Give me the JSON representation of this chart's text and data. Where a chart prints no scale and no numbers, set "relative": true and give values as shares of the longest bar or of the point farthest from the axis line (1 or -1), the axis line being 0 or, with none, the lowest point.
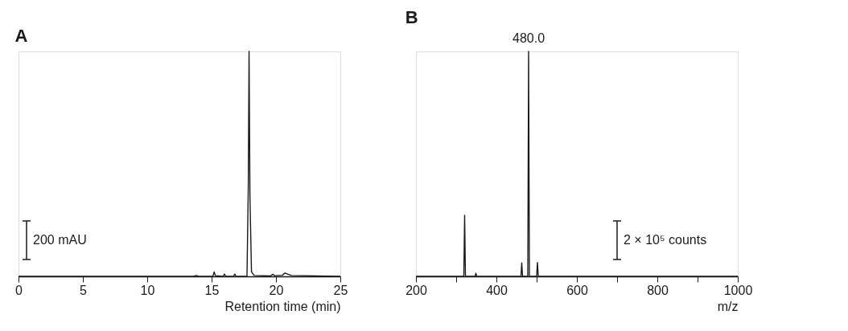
{
  "chart_data": [
    {
      "type": "line",
      "title": "A",
      "xlabel": "Retention time (min)",
      "relative": true,
      "xlim": [
        0,
        25
      ],
      "xticks": [
        0,
        5,
        10,
        15,
        20,
        25
      ],
      "tick_labels": "x",
      "grid": false,
      "marker": "none",
      "line_style": "solid",
      "annotations": [
        "200 mAU"
      ],
      "series": [
        {
          "color": "#1a1a1a",
          "x": [
            0,
            5,
            10,
            13.6,
            13.8,
            14.0,
            15.1,
            15.2,
            15.3,
            15.9,
            16.0,
            16.1,
            16.7,
            16.8,
            16.9,
            17.75,
            17.85,
            17.91,
            17.98,
            18.1,
            18.3,
            19.6,
            19.75,
            19.9,
            20.5,
            20.7,
            20.9,
            21.2,
            25
          ],
          "values": [
            0,
            0,
            0,
            0,
            0.004,
            0,
            0,
            0.02,
            0.003,
            0,
            0.01,
            0,
            0,
            0.01,
            0,
            0,
            0.4,
            1,
            0.35,
            0.02,
            0.004,
            0.002,
            0.01,
            0.003,
            0.005,
            0.015,
            0.01,
            0.004,
            0
          ]
        }
      ]
    },
    {
      "type": "line",
      "title": "B",
      "xlabel": "m/z",
      "relative": true,
      "xlim": [
        200,
        1000
      ],
      "xticks": [
        200,
        {
          "value": 300,
          "label": null
        },
        400,
        {
          "value": 500,
          "label": null
        },
        600,
        {
          "value": 700,
          "label": null
        },
        800,
        {
          "value": 900,
          "label": null
        },
        1000
      ],
      "tick_labels": "x",
      "grid": false,
      "marker": "none",
      "line_style": "solid",
      "annotations": [
        {
          "text": "480.0",
          "x": 480,
          "y": 1
        },
        "2 × 10⁵ counts"
      ],
      "series": [
        {
          "color": "#1a1a1a",
          "x": [
            200,
            319,
            321,
            323,
            347,
            349,
            351,
            461,
            463,
            465,
            478,
            480,
            482,
            500,
            502,
            504,
            1000
          ],
          "values": [
            0,
            0,
            0.272,
            0,
            0,
            0.014,
            0,
            0,
            0.06,
            0,
            0,
            1,
            0,
            0,
            0.062,
            0,
            0
          ]
        }
      ]
    }
  ]
}
